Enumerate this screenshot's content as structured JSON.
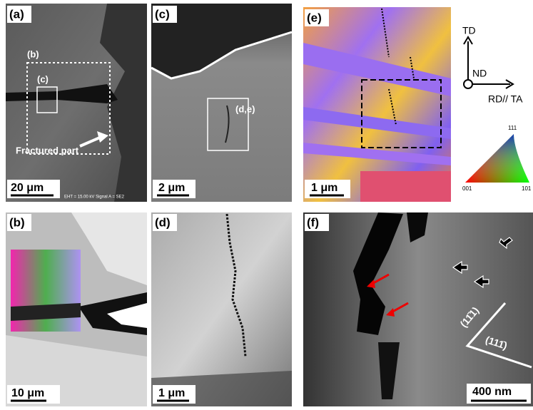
{
  "panels": [
    {
      "label": "(a)",
      "scale_bar": "20 μm",
      "annotations": [
        "(b)",
        "(c)",
        "Fractured part"
      ],
      "footer": "EHT = 15.00 kV   Signal A = SE2"
    },
    {
      "label": "(c)",
      "scale_bar": "2 μm",
      "annotations": [
        "(d,e)"
      ]
    },
    {
      "label": "(e)",
      "scale_bar": "1 μm"
    },
    {
      "label": "(b)",
      "scale_bar": "10 μm"
    },
    {
      "label": "(d)",
      "scale_bar": "1 μm"
    },
    {
      "label": "(f)",
      "scale_bar": "400 nm",
      "annotations": [
        "(11̄1)",
        "(111̄)"
      ]
    }
  ],
  "legend": {
    "axes": [
      "TD",
      "ND",
      "RD// TA"
    ],
    "triangle": [
      "111",
      "001",
      "101"
    ]
  }
}
